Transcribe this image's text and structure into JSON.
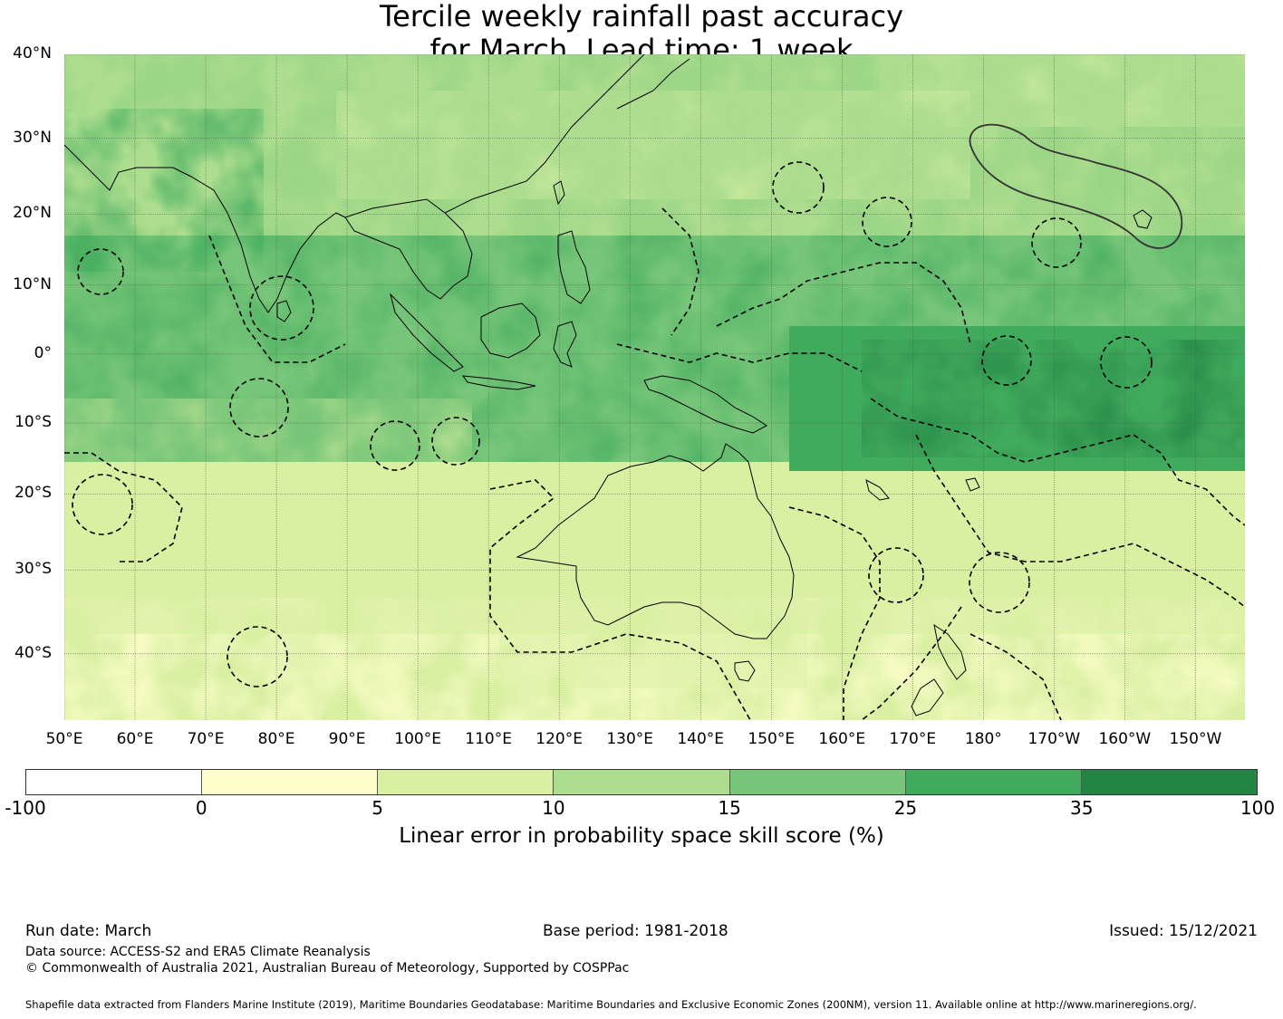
{
  "title": {
    "line1": "Tercile weekly rainfall past accuracy",
    "line2": "for March, Lead time: 1 week"
  },
  "map": {
    "lat_labels": [
      "40°N",
      "30°N",
      "20°N",
      "10°N",
      "0°",
      "10°S",
      "20°S",
      "30°S",
      "40°S"
    ],
    "lon_labels": [
      "50°E",
      "60°E",
      "70°E",
      "80°E",
      "90°E",
      "100°E",
      "110°E",
      "120°E",
      "130°E",
      "140°E",
      "150°E",
      "160°E",
      "170°E",
      "180°",
      "170°W",
      "160°W",
      "150°W"
    ],
    "lon_values": [
      50,
      60,
      70,
      80,
      90,
      100,
      110,
      120,
      130,
      140,
      150,
      160,
      170,
      180,
      190,
      200,
      210
    ],
    "lat_values": [
      40,
      30,
      20,
      10,
      0,
      -10,
      -20,
      -30,
      -40
    ],
    "extent": {
      "lon_min": 50,
      "lon_max": 217,
      "lat_min": -47,
      "lat_max": 40
    },
    "grid": true
  },
  "colorbar": {
    "ticks": [
      "-100",
      "0",
      "5",
      "10",
      "15",
      "25",
      "35",
      "100"
    ],
    "colors": [
      "#ffffff",
      "#ffffcc",
      "#d9f0a3",
      "#addd8e",
      "#78c679",
      "#41ab5d",
      "#238443"
    ],
    "label": "Linear error in probability space skill score (%)"
  },
  "footer": {
    "run_date": "Run date: March",
    "base_period": "Base period: 1981-2018",
    "issued": "Issued: 15/12/2021",
    "data_source": "Data source: ACCESS-S2 and ERA5 Climate Reanalysis",
    "copyright": "© Commonwealth of Australia 2021, Australian Bureau of Meteorology, Supported by COSPPac",
    "shapefile": "Shapefile data extracted from Flanders Marine Institute (2019), Maritime Boundaries Geodatabase: Maritime Boundaries and Exclusive Economic Zones (200NM), version 11. Available online at http://www.marineregions.org/."
  }
}
